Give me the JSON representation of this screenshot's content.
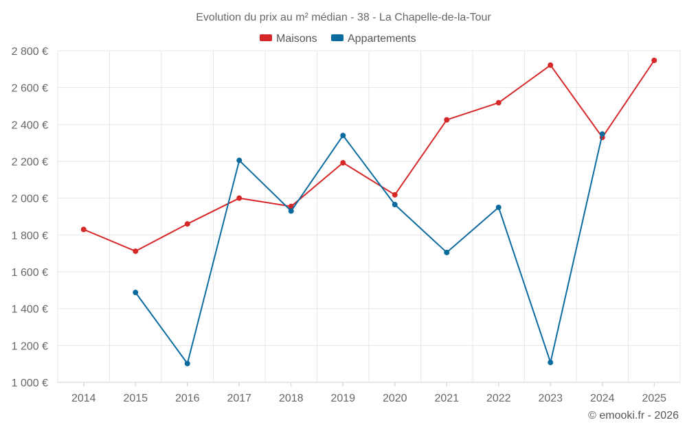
{
  "chart_data": {
    "type": "line",
    "title": "Evolution du prix au m² médian - 38 - La Chapelle-de-la-Tour",
    "x": [
      "2014",
      "2015",
      "2016",
      "2017",
      "2018",
      "2019",
      "2020",
      "2021",
      "2022",
      "2023",
      "2024",
      "2025"
    ],
    "series": [
      {
        "name": "Maisons",
        "color": "#d62728",
        "values": [
          1830,
          1712,
          1860,
          2000,
          1955,
          2192,
          2018,
          2425,
          2518,
          2722,
          2330,
          2748
        ]
      },
      {
        "name": "Appartements",
        "color": "#0b6a9e",
        "values": [
          null,
          1488,
          1102,
          2205,
          1930,
          2340,
          1965,
          1705,
          1950,
          1108,
          2348,
          null
        ]
      }
    ],
    "ylim": [
      1000,
      2800
    ],
    "yticks": [
      1000,
      1200,
      1400,
      1600,
      1800,
      2000,
      2200,
      2400,
      2600,
      2800
    ],
    "ytick_labels": [
      "1 000 €",
      "1 200 €",
      "1 400 €",
      "1 600 €",
      "1 800 €",
      "2 000 €",
      "2 200 €",
      "2 400 €",
      "2 600 €",
      "2 800 €"
    ],
    "legend": "top-center",
    "grid": true,
    "xlabel": "",
    "ylabel": ""
  },
  "credit": "© emooki.fr - 2026"
}
